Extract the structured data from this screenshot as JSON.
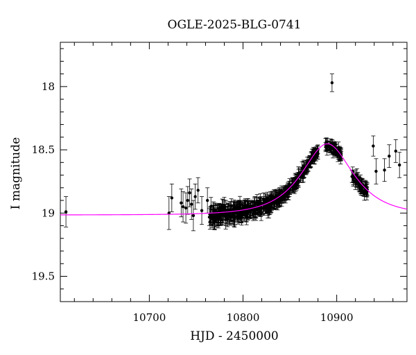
{
  "chart_data": {
    "type": "scatter",
    "title": "OGLE-2025-BLG-0741",
    "xlabel": "HJD - 2450000",
    "ylabel": "I magnitude",
    "xlim": [
      10605,
      10975
    ],
    "ylim": [
      19.7,
      17.65
    ],
    "y_inverted": true,
    "grid": false,
    "legend": "none",
    "x_ticks": [
      10700,
      10800,
      10900
    ],
    "y_ticks": [
      18,
      18.5,
      19,
      19.5
    ],
    "x_tick_labels": [
      "10700",
      "10800",
      "10900"
    ],
    "y_tick_labels": [
      "18",
      "18.5",
      "19",
      "19.5"
    ],
    "colors": {
      "points": "#000000",
      "model": "#ff00ff",
      "frame": "#000000"
    },
    "model": {
      "type": "microlensing-pspl",
      "t0": 10890,
      "tE": 40,
      "u0": 0.7,
      "I_base": 19.015,
      "fs": 1.0,
      "x_start": 10605,
      "x_end": 10975
    },
    "sparse_points": [
      {
        "x": 10611,
        "y": 18.99,
        "err": 0.12
      },
      {
        "x": 10721,
        "y": 19.0,
        "err": 0.13
      },
      {
        "x": 10724,
        "y": 18.88,
        "err": 0.11
      },
      {
        "x": 10734,
        "y": 18.92,
        "err": 0.11
      },
      {
        "x": 10736,
        "y": 18.95,
        "err": 0.12
      },
      {
        "x": 10739,
        "y": 18.96,
        "err": 0.12
      },
      {
        "x": 10741,
        "y": 18.9,
        "err": 0.11
      },
      {
        "x": 10743,
        "y": 18.84,
        "err": 0.11
      },
      {
        "x": 10745,
        "y": 18.93,
        "err": 0.12
      },
      {
        "x": 10747,
        "y": 19.02,
        "err": 0.12
      },
      {
        "x": 10749,
        "y": 18.87,
        "err": 0.1
      },
      {
        "x": 10752,
        "y": 18.82,
        "err": 0.1
      },
      {
        "x": 10756,
        "y": 18.98,
        "err": 0.11
      },
      {
        "x": 10762,
        "y": 18.9,
        "err": 0.1
      },
      {
        "x": 10895,
        "y": 17.97,
        "err": 0.07
      },
      {
        "x": 10939,
        "y": 18.47,
        "err": 0.08
      },
      {
        "x": 10942,
        "y": 18.67,
        "err": 0.1
      },
      {
        "x": 10951,
        "y": 18.66,
        "err": 0.09
      },
      {
        "x": 10956,
        "y": 18.55,
        "err": 0.09
      },
      {
        "x": 10963,
        "y": 18.51,
        "err": 0.09
      },
      {
        "x": 10967,
        "y": 18.62,
        "err": 0.1
      }
    ],
    "dense_segments": [
      {
        "x_start": 10764,
        "x_end": 10782,
        "n": 70,
        "err": 0.065,
        "scatter": 0.055
      },
      {
        "x_start": 10783,
        "x_end": 10800,
        "n": 70,
        "err": 0.06,
        "scatter": 0.05
      },
      {
        "x_start": 10801,
        "x_end": 10820,
        "n": 75,
        "err": 0.055,
        "scatter": 0.05
      },
      {
        "x_start": 10821,
        "x_end": 10840,
        "n": 75,
        "err": 0.05,
        "scatter": 0.045
      },
      {
        "x_start": 10841,
        "x_end": 10866,
        "n": 80,
        "err": 0.045,
        "scatter": 0.04
      },
      {
        "x_start": 10867,
        "x_end": 10880,
        "n": 55,
        "err": 0.04,
        "scatter": 0.03
      },
      {
        "x_start": 10888,
        "x_end": 10905,
        "n": 55,
        "err": 0.04,
        "scatter": 0.035
      },
      {
        "x_start": 10916,
        "x_end": 10933,
        "n": 50,
        "err": 0.045,
        "scatter": 0.04
      }
    ]
  }
}
